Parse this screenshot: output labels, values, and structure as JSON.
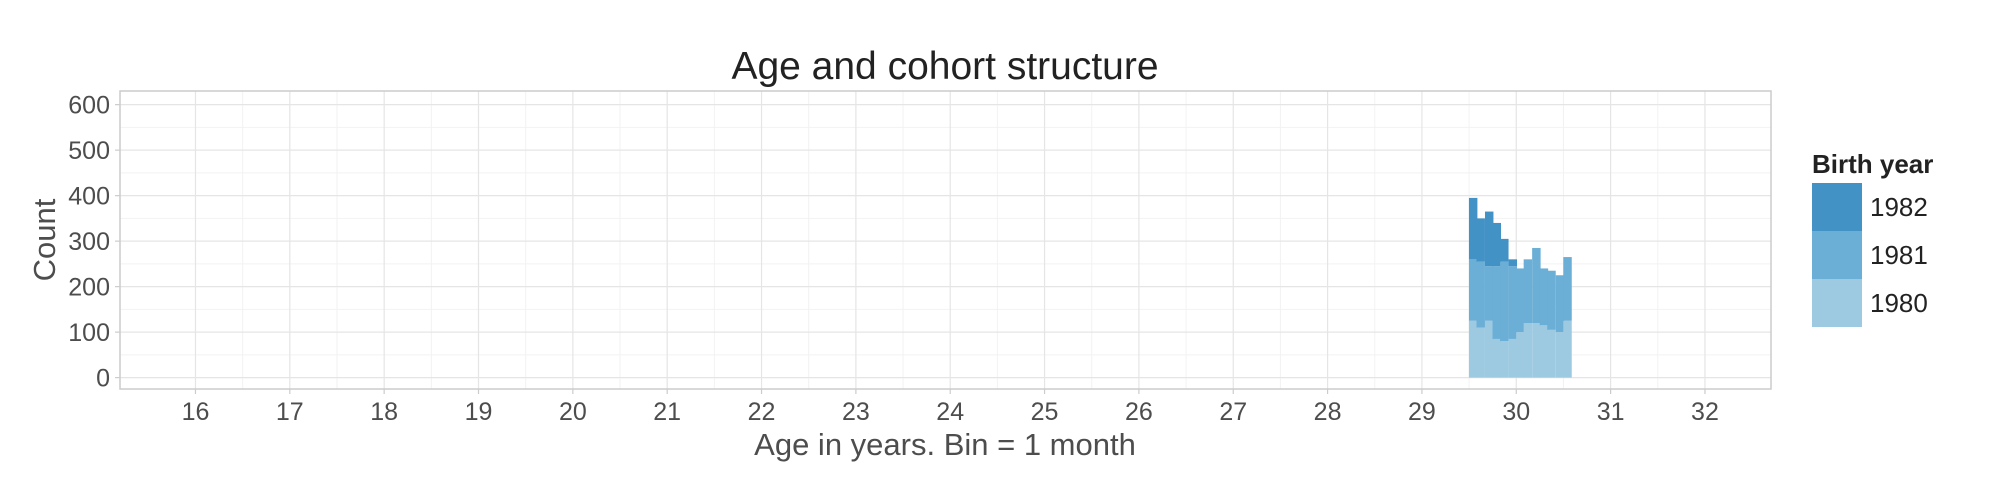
{
  "chart_data": {
    "type": "bar",
    "stacked": true,
    "title": "Age and cohort structure",
    "xlabel": "Age in years. Bin = 1 month",
    "ylabel": "Count",
    "xlim": [
      15.2,
      32.7
    ],
    "ylim": [
      -25,
      630
    ],
    "x_ticks": [
      16,
      17,
      18,
      19,
      20,
      21,
      22,
      23,
      24,
      25,
      26,
      27,
      28,
      29,
      30,
      31,
      32
    ],
    "y_ticks": [
      0,
      100,
      200,
      300,
      400,
      500,
      600
    ],
    "bin_width_years": 0.0833333,
    "grid": true,
    "legend_position": "right",
    "legend_title": "Birth year",
    "x": [
      29.54,
      29.62,
      29.71,
      29.79,
      29.87,
      29.96,
      30.04,
      30.12,
      30.21,
      30.29,
      30.37,
      30.46,
      30.54
    ],
    "series": [
      {
        "name": "1980",
        "color": "#9ecae1",
        "values": [
          125,
          110,
          125,
          85,
          80,
          85,
          100,
          120,
          120,
          115,
          105,
          100,
          125
        ]
      },
      {
        "name": "1981",
        "color": "#6baed6",
        "values": [
          135,
          145,
          120,
          160,
          175,
          160,
          140,
          140,
          165,
          125,
          130,
          125,
          140
        ]
      },
      {
        "name": "1982",
        "color": "#4292c6",
        "values": [
          135,
          95,
          120,
          95,
          50,
          15,
          0,
          0,
          0,
          0,
          0,
          0,
          0
        ]
      }
    ],
    "legend_order": [
      "1982",
      "1981",
      "1980"
    ]
  }
}
